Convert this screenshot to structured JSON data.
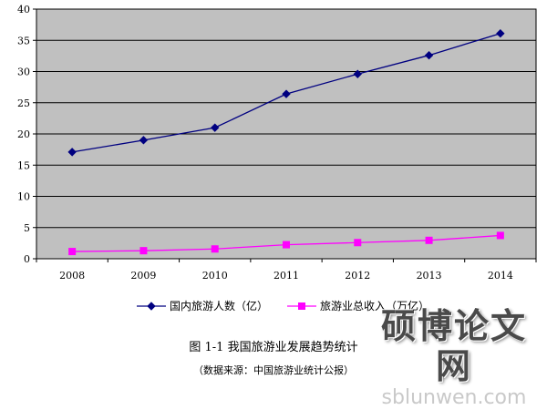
{
  "chart_data": {
    "type": "line",
    "categories": [
      "2008",
      "2009",
      "2010",
      "2011",
      "2012",
      "2013",
      "2014"
    ],
    "series": [
      {
        "name": "国内旅游人数（亿）",
        "color": "#000080",
        "marker": "diamond",
        "values": [
          17.1,
          19.0,
          21.0,
          26.4,
          29.6,
          32.6,
          36.1
        ]
      },
      {
        "name": "旅游业总收入（万亿）",
        "color": "#FF00FF",
        "marker": "square",
        "values": [
          1.16,
          1.29,
          1.57,
          2.25,
          2.59,
          2.95,
          3.73
        ]
      }
    ],
    "ylim": [
      0,
      40
    ],
    "yticks": [
      "0",
      "5",
      "10",
      "15",
      "20",
      "25",
      "30",
      "35",
      "40"
    ],
    "grid": true,
    "plot_background": "#C0C0C0",
    "legend": "bottom",
    "title": "图 1-1    我国旅游业发展趋势统计",
    "source_note": "（数据来源：中国旅游业统计公报）"
  },
  "watermark": {
    "logo": "硕博论文网",
    "url": "sblunwen.com"
  }
}
